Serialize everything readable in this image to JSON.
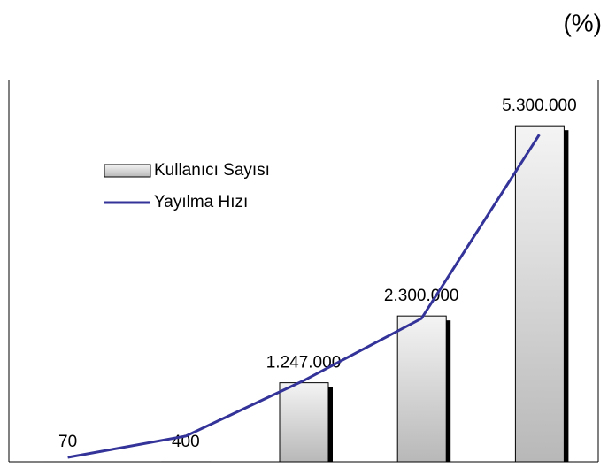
{
  "chart_data": {
    "type": "bar",
    "unit_label": "(%)",
    "categories": [
      null,
      null,
      null,
      null,
      null
    ],
    "series": [
      {
        "name": "Kullanıcı Sayısı",
        "type": "bar",
        "color": "#d4d4d4",
        "values": [
          70,
          400,
          1247000,
          2300000,
          5300000
        ],
        "value_labels": [
          "70",
          "400",
          "1.247.000",
          "2.300.000",
          "5.300.000"
        ]
      },
      {
        "name": "Yayılma Hızı",
        "type": "line",
        "color": "#333399",
        "values": [
          70000,
          405000,
          1280000,
          2260000,
          5160000
        ]
      }
    ],
    "ylim": [
      0,
      6000000
    ]
  }
}
